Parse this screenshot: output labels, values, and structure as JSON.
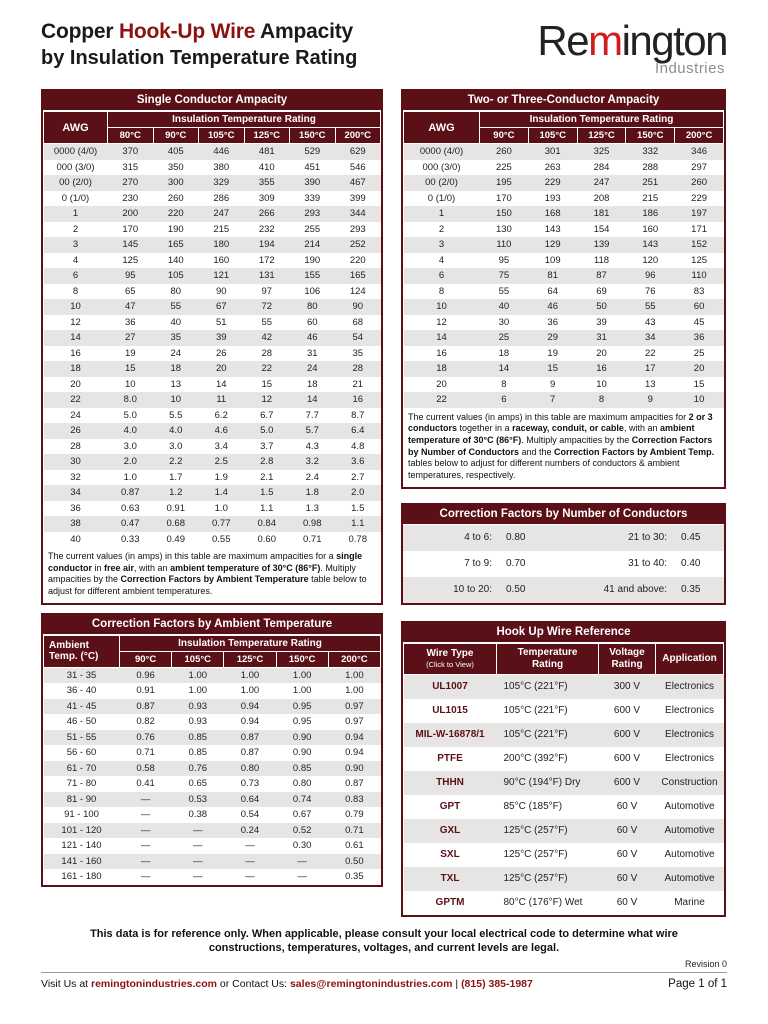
{
  "colors": {
    "maroon": "#5a1016",
    "title-accent": "#8a1212",
    "logo-red": "#d01c1c",
    "row-gray": "#e7e5e4",
    "link": "#8a1212"
  },
  "header": {
    "title_segments": [
      {
        "t": "Copper ",
        "b": true
      },
      {
        "t": "Hook-Up Wire",
        "b": true,
        "maroon": true
      },
      {
        "t": " Ampacity",
        "b": true
      }
    ],
    "title_line2": "by Insulation Temperature Rating",
    "logo": {
      "pre": "Re",
      "m": "m",
      "post": "ington",
      "subtitle": "Industries"
    }
  },
  "single_conductor": {
    "title": "Single Conductor Ampacity",
    "awg_label": "AWG",
    "group_label": "Insulation Temperature Rating",
    "columns": [
      "80°C",
      "90°C",
      "105°C",
      "125°C",
      "150°C",
      "200°C"
    ],
    "rows": [
      [
        "0000 (4/0)",
        "370",
        "405",
        "446",
        "481",
        "529",
        "629"
      ],
      [
        "000 (3/0)",
        "315",
        "350",
        "380",
        "410",
        "451",
        "546"
      ],
      [
        "00 (2/0)",
        "270",
        "300",
        "329",
        "355",
        "390",
        "467"
      ],
      [
        "0 (1/0)",
        "230",
        "260",
        "286",
        "309",
        "339",
        "399"
      ],
      [
        "1",
        "200",
        "220",
        "247",
        "266",
        "293",
        "344"
      ],
      [
        "2",
        "170",
        "190",
        "215",
        "232",
        "255",
        "293"
      ],
      [
        "3",
        "145",
        "165",
        "180",
        "194",
        "214",
        "252"
      ],
      [
        "4",
        "125",
        "140",
        "160",
        "172",
        "190",
        "220"
      ],
      [
        "6",
        "95",
        "105",
        "121",
        "131",
        "155",
        "165"
      ],
      [
        "8",
        "65",
        "80",
        "90",
        "97",
        "106",
        "124"
      ],
      [
        "10",
        "47",
        "55",
        "67",
        "72",
        "80",
        "90"
      ],
      [
        "12",
        "36",
        "40",
        "51",
        "55",
        "60",
        "68"
      ],
      [
        "14",
        "27",
        "35",
        "39",
        "42",
        "46",
        "54"
      ],
      [
        "16",
        "19",
        "24",
        "26",
        "28",
        "31",
        "35"
      ],
      [
        "18",
        "15",
        "18",
        "20",
        "22",
        "24",
        "28"
      ],
      [
        "20",
        "10",
        "13",
        "14",
        "15",
        "18",
        "21"
      ],
      [
        "22",
        "8.0",
        "10",
        "11",
        "12",
        "14",
        "16"
      ],
      [
        "24",
        "5.0",
        "5.5",
        "6.2",
        "6.7",
        "7.7",
        "8.7"
      ],
      [
        "26",
        "4.0",
        "4.0",
        "4.6",
        "5.0",
        "5.7",
        "6.4"
      ],
      [
        "28",
        "3.0",
        "3.0",
        "3.4",
        "3.7",
        "4.3",
        "4.8"
      ],
      [
        "30",
        "2.0",
        "2.2",
        "2.5",
        "2.8",
        "3.2",
        "3.6"
      ],
      [
        "32",
        "1.0",
        "1.7",
        "1.9",
        "2.1",
        "2.4",
        "2.7"
      ],
      [
        "34",
        "0.87",
        "1.2",
        "1.4",
        "1.5",
        "1.8",
        "2.0"
      ],
      [
        "36",
        "0.63",
        "0.91",
        "1.0",
        "1.1",
        "1.3",
        "1.5"
      ],
      [
        "38",
        "0.47",
        "0.68",
        "0.77",
        "0.84",
        "0.98",
        "1.1"
      ],
      [
        "40",
        "0.33",
        "0.49",
        "0.55",
        "0.60",
        "0.71",
        "0.78"
      ]
    ],
    "note": [
      {
        "t": "The current values (in amps) in this table are maximum ampacities for a "
      },
      {
        "t": "single conductor",
        "b": true
      },
      {
        "t": " in "
      },
      {
        "t": "free air",
        "b": true
      },
      {
        "t": ", with an "
      },
      {
        "t": "ambient temperature of 30°C (86°F)",
        "b": true
      },
      {
        "t": ". Multiply ampacities by the "
      },
      {
        "t": "Correction Factors by Ambient Temperature",
        "b": true
      },
      {
        "t": " table below to adjust for different ambient temperatures."
      }
    ]
  },
  "multi_conductor": {
    "title": "Two- or Three-Conductor Ampacity",
    "awg_label": "AWG",
    "group_label": "Insulation Temperature Rating",
    "columns": [
      "90°C",
      "105°C",
      "125°C",
      "150°C",
      "200°C"
    ],
    "rows": [
      [
        "0000 (4/0)",
        "260",
        "301",
        "325",
        "332",
        "346"
      ],
      [
        "000 (3/0)",
        "225",
        "263",
        "284",
        "288",
        "297"
      ],
      [
        "00 (2/0)",
        "195",
        "229",
        "247",
        "251",
        "260"
      ],
      [
        "0 (1/0)",
        "170",
        "193",
        "208",
        "215",
        "229"
      ],
      [
        "1",
        "150",
        "168",
        "181",
        "186",
        "197"
      ],
      [
        "2",
        "130",
        "143",
        "154",
        "160",
        "171"
      ],
      [
        "3",
        "110",
        "129",
        "139",
        "143",
        "152"
      ],
      [
        "4",
        "95",
        "109",
        "118",
        "120",
        "125"
      ],
      [
        "6",
        "75",
        "81",
        "87",
        "96",
        "110"
      ],
      [
        "8",
        "55",
        "64",
        "69",
        "76",
        "83"
      ],
      [
        "10",
        "40",
        "46",
        "50",
        "55",
        "60"
      ],
      [
        "12",
        "30",
        "36",
        "39",
        "43",
        "45"
      ],
      [
        "14",
        "25",
        "29",
        "31",
        "34",
        "36"
      ],
      [
        "16",
        "18",
        "19",
        "20",
        "22",
        "25"
      ],
      [
        "18",
        "14",
        "15",
        "16",
        "17",
        "20"
      ],
      [
        "20",
        "8",
        "9",
        "10",
        "13",
        "15"
      ],
      [
        "22",
        "6",
        "7",
        "8",
        "9",
        "10"
      ]
    ],
    "note": [
      {
        "t": "The current values (in amps) in this table are maximum ampacities for "
      },
      {
        "t": "2 or 3 conductors",
        "b": true
      },
      {
        "t": " together in a "
      },
      {
        "t": "raceway, conduit, or cable",
        "b": true
      },
      {
        "t": ", with an "
      },
      {
        "t": "ambient temperature of 30°C (86°F)",
        "b": true
      },
      {
        "t": ". Multiply ampacities by the "
      },
      {
        "t": "Correction Factors by Number of Conductors",
        "b": true
      },
      {
        "t": " and the "
      },
      {
        "t": "Correction Factors by Ambient Temp.",
        "b": true
      },
      {
        "t": " tables below to adjust for different numbers of conductors & ambient temperatures, respectively."
      }
    ]
  },
  "conductor_factors": {
    "title": "Correction Factors by Number of Conductors",
    "rows": [
      [
        "4 to 6:",
        "0.80",
        "21 to 30:",
        "0.45"
      ],
      [
        "7 to 9:",
        "0.70",
        "31 to 40:",
        "0.40"
      ],
      [
        "10 to 20:",
        "0.50",
        "41 and above:",
        "0.35"
      ]
    ]
  },
  "ambient_factors": {
    "title": "Correction Factors by Ambient Temperature",
    "col1_line1": "Ambient",
    "col1_line2": "Temp. (°C)",
    "group_label": "Insulation Temperature Rating",
    "columns": [
      "90°C",
      "105°C",
      "125°C",
      "150°C",
      "200°C"
    ],
    "rows": [
      [
        "31 - 35",
        "0.96",
        "1.00",
        "1.00",
        "1.00",
        "1.00"
      ],
      [
        "36 - 40",
        "0.91",
        "1.00",
        "1.00",
        "1.00",
        "1.00"
      ],
      [
        "41 - 45",
        "0.87",
        "0.93",
        "0.94",
        "0.95",
        "0.97"
      ],
      [
        "46 - 50",
        "0.82",
        "0.93",
        "0.94",
        "0.95",
        "0.97"
      ],
      [
        "51 - 55",
        "0.76",
        "0.85",
        "0.87",
        "0.90",
        "0.94"
      ],
      [
        "56 - 60",
        "0.71",
        "0.85",
        "0.87",
        "0.90",
        "0.94"
      ],
      [
        "61 - 70",
        "0.58",
        "0.76",
        "0.80",
        "0.85",
        "0.90"
      ],
      [
        "71 - 80",
        "0.41",
        "0.65",
        "0.73",
        "0.80",
        "0.87"
      ],
      [
        "81 - 90",
        "—",
        "0.53",
        "0.64",
        "0.74",
        "0.83"
      ],
      [
        "91 - 100",
        "—",
        "0.38",
        "0.54",
        "0.67",
        "0.79"
      ],
      [
        "101 - 120",
        "—",
        "—",
        "0.24",
        "0.52",
        "0.71"
      ],
      [
        "121 - 140",
        "—",
        "—",
        "—",
        "0.30",
        "0.61"
      ],
      [
        "141 - 160",
        "—",
        "—",
        "—",
        "—",
        "0.50"
      ],
      [
        "161 - 180",
        "—",
        "—",
        "—",
        "—",
        "0.35"
      ]
    ]
  },
  "wire_reference": {
    "title": "Hook Up Wire Reference",
    "headers": [
      {
        "line1": "Wire Type",
        "line2": "(Click to View)"
      },
      {
        "line1": "Temperature",
        "line2": "Rating"
      },
      {
        "line1": "Voltage",
        "line2": "Rating"
      },
      {
        "line1": "Application",
        "line2": ""
      }
    ],
    "rows": [
      [
        "UL1007",
        "105°C (221°F)",
        "300 V",
        "Electronics"
      ],
      [
        "UL1015",
        "105°C (221°F)",
        "600 V",
        "Electronics"
      ],
      [
        "MIL-W-16878/1",
        "105°C (221°F)",
        "600 V",
        "Electronics"
      ],
      [
        "PTFE",
        "200°C (392°F)",
        "600 V",
        "Electronics"
      ],
      [
        "THHN",
        "90°C (194°F) Dry",
        "600 V",
        "Construction"
      ],
      [
        "GPT",
        "85°C (185°F)",
        "60 V",
        "Automotive"
      ],
      [
        "GXL",
        "125°C (257°F)",
        "60 V",
        "Automotive"
      ],
      [
        "SXL",
        "125°C (257°F)",
        "60 V",
        "Automotive"
      ],
      [
        "TXL",
        "125°C (257°F)",
        "60 V",
        "Automotive"
      ],
      [
        "GPTM",
        "80°C (176°F) Wet",
        "60 V",
        "Marine"
      ]
    ]
  },
  "footer": {
    "disclaimer": "This data is for reference only. When applicable, please consult your local electrical code to determine what wire constructions, temperatures, voltages, and current levels are legal.",
    "revision": "Revision 0",
    "page": "Page 1 of 1",
    "contact_segments": [
      {
        "t": "Visit Us at "
      },
      {
        "t": "remingtonindustries.com",
        "link": true
      },
      {
        "t": " or Contact Us: "
      },
      {
        "t": "sales@remingtonindustries.com",
        "link": true
      },
      {
        "t": " | "
      },
      {
        "t": "(815) 385-1987",
        "link": true
      }
    ]
  }
}
